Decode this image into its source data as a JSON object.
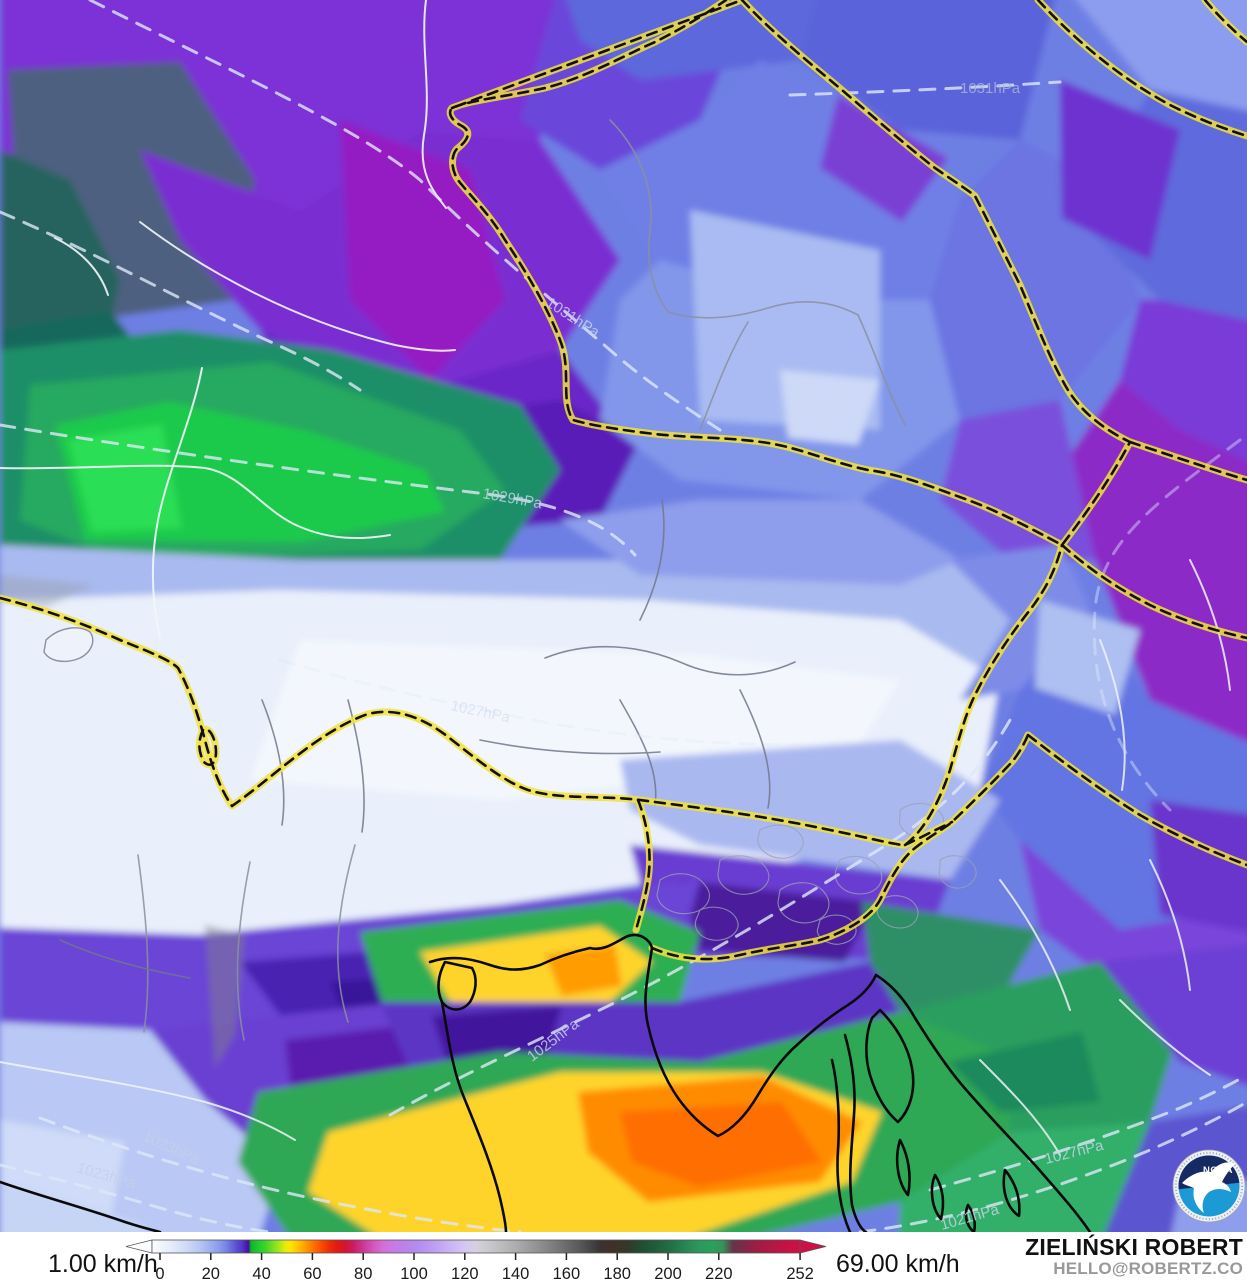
{
  "map": {
    "isobar_labels": [
      {
        "text": "1031hPa"
      },
      {
        "text": "1031hPa"
      },
      {
        "text": "1029hPa"
      },
      {
        "text": "1027hPa"
      },
      {
        "text": "1025hPa"
      },
      {
        "text": "1023hPa"
      },
      {
        "text": "1023hPa"
      },
      {
        "text": "1027hPa"
      },
      {
        "text": "1021hPa"
      }
    ],
    "logo": {
      "text": "NOAA"
    },
    "border_colors": {
      "country_glow": "#f2e23c",
      "country_line": "#111111",
      "region_line": "#8a90a0",
      "isobar": "#dde8f8"
    }
  },
  "legend": {
    "min_label": "1.00 km/h",
    "max_label": "69.00 km/h",
    "unit": "km/h",
    "ticks": [
      "0",
      "20",
      "40",
      "60",
      "80",
      "100",
      "120",
      "140",
      "160",
      "180",
      "200",
      "220",
      "252"
    ],
    "gradient": [
      {
        "v": 0,
        "c": "#fcfdff"
      },
      {
        "v": 6,
        "c": "#e9effb"
      },
      {
        "v": 12,
        "c": "#d4dff8"
      },
      {
        "v": 18,
        "c": "#bac9f4"
      },
      {
        "v": 22,
        "c": "#a2b3f0"
      },
      {
        "v": 26,
        "c": "#8c9cea"
      },
      {
        "v": 29,
        "c": "#7583e4"
      },
      {
        "v": 31,
        "c": "#6468da"
      },
      {
        "v": 33,
        "c": "#574ece"
      },
      {
        "v": 35,
        "c": "#5836c8"
      },
      {
        "v": 36.5,
        "c": "#4f1cb2"
      },
      {
        "v": 37.5,
        "c": "#3f109c"
      },
      {
        "v": 38.5,
        "c": "#12b427"
      },
      {
        "v": 41,
        "c": "#1cc930"
      },
      {
        "v": 44,
        "c": "#3bd42a"
      },
      {
        "v": 47,
        "c": "#76df21"
      },
      {
        "v": 50,
        "c": "#b2e816"
      },
      {
        "v": 52,
        "c": "#e8ea0c"
      },
      {
        "v": 54,
        "c": "#ffe400"
      },
      {
        "v": 57,
        "c": "#ffc000"
      },
      {
        "v": 60,
        "c": "#ff9800"
      },
      {
        "v": 63,
        "c": "#ff6f00"
      },
      {
        "v": 66,
        "c": "#fb4a00"
      },
      {
        "v": 69,
        "c": "#ee2d05"
      },
      {
        "v": 72,
        "c": "#e01a14"
      },
      {
        "v": 75,
        "c": "#d41430"
      },
      {
        "v": 78,
        "c": "#cc1a5c"
      },
      {
        "v": 81,
        "c": "#cc2f85"
      },
      {
        "v": 84,
        "c": "#d046a8"
      },
      {
        "v": 87,
        "c": "#d55cc4"
      },
      {
        "v": 90,
        "c": "#d46ed8"
      },
      {
        "v": 94,
        "c": "#c87ae4"
      },
      {
        "v": 98,
        "c": "#bb82ea"
      },
      {
        "v": 103,
        "c": "#b38cee"
      },
      {
        "v": 108,
        "c": "#ba9af0"
      },
      {
        "v": 113,
        "c": "#c5a9f3"
      },
      {
        "v": 118,
        "c": "#cfbaf4"
      },
      {
        "v": 122,
        "c": "#d5c8f0"
      },
      {
        "v": 126,
        "c": "#d4d0e0"
      },
      {
        "v": 130,
        "c": "#cbcbcf"
      },
      {
        "v": 136,
        "c": "#bcbcbf"
      },
      {
        "v": 142,
        "c": "#ababae"
      },
      {
        "v": 148,
        "c": "#98989b"
      },
      {
        "v": 154,
        "c": "#848487"
      },
      {
        "v": 160,
        "c": "#6f6f72"
      },
      {
        "v": 166,
        "c": "#5a5a5d"
      },
      {
        "v": 170,
        "c": "#48484a"
      },
      {
        "v": 174,
        "c": "#3a3432"
      },
      {
        "v": 178,
        "c": "#40302a"
      },
      {
        "v": 182,
        "c": "#3c3424"
      },
      {
        "v": 186,
        "c": "#2e3c28"
      },
      {
        "v": 190,
        "c": "#234c30"
      },
      {
        "v": 196,
        "c": "#1f5e3a"
      },
      {
        "v": 202,
        "c": "#237046"
      },
      {
        "v": 208,
        "c": "#288852"
      },
      {
        "v": 213,
        "c": "#2b9a5a"
      },
      {
        "v": 218,
        "c": "#2aa05e"
      },
      {
        "v": 222,
        "c": "#379257"
      },
      {
        "v": 226,
        "c": "#62354a"
      },
      {
        "v": 232,
        "c": "#8c2347"
      },
      {
        "v": 238,
        "c": "#a81a45"
      },
      {
        "v": 245,
        "c": "#c01345"
      },
      {
        "v": 252,
        "c": "#cf1045"
      }
    ]
  },
  "attribution": {
    "name": "ZIELIŃSKI ROBERT",
    "email": "HELLO@ROBERTZ.CO"
  }
}
